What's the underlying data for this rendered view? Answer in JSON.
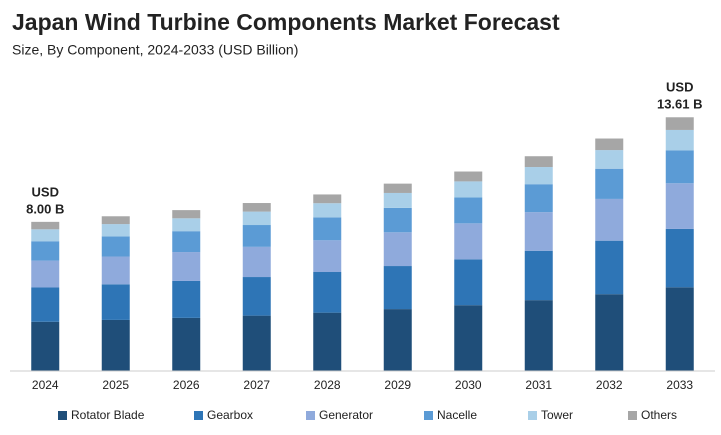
{
  "chart_data": {
    "type": "stacked-bar",
    "title": "Japan Wind Turbine Components Market Forecast",
    "subtitle": "Size, By Component, 2024-2033 (USD Billion)",
    "categories": [
      "2024",
      "2025",
      "2026",
      "2027",
      "2028",
      "2029",
      "2030",
      "2031",
      "2032",
      "2033"
    ],
    "series": [
      {
        "name": "Rotator Blade",
        "color": "#1f4e79",
        "values": [
          2.64,
          2.74,
          2.85,
          2.97,
          3.13,
          3.32,
          3.53,
          3.8,
          4.12,
          4.49
        ]
      },
      {
        "name": "Gearbox",
        "color": "#2e75b6",
        "values": [
          1.84,
          1.91,
          1.98,
          2.07,
          2.18,
          2.31,
          2.46,
          2.65,
          2.87,
          3.13
        ]
      },
      {
        "name": "Generator",
        "color": "#8faadc",
        "values": [
          1.44,
          1.49,
          1.55,
          1.62,
          1.7,
          1.81,
          1.93,
          2.07,
          2.24,
          2.45
        ]
      },
      {
        "name": "Nacelle",
        "color": "#5b9bd5",
        "values": [
          1.04,
          1.08,
          1.12,
          1.17,
          1.23,
          1.31,
          1.39,
          1.5,
          1.62,
          1.77
        ]
      },
      {
        "name": "Tower",
        "color": "#a9cfe8",
        "values": [
          0.64,
          0.66,
          0.69,
          0.72,
          0.76,
          0.8,
          0.86,
          0.92,
          1.0,
          1.09
        ]
      },
      {
        "name": "Others",
        "color": "#a6a6a6",
        "values": [
          0.4,
          0.42,
          0.44,
          0.46,
          0.47,
          0.5,
          0.53,
          0.58,
          0.62,
          0.68
        ]
      }
    ],
    "annotations": [
      {
        "category": "2024",
        "lines": [
          "USD",
          "8.00 B"
        ]
      },
      {
        "category": "2033",
        "lines": [
          "USD",
          "13.61 B"
        ]
      }
    ],
    "ylim": [
      0,
      14
    ]
  }
}
